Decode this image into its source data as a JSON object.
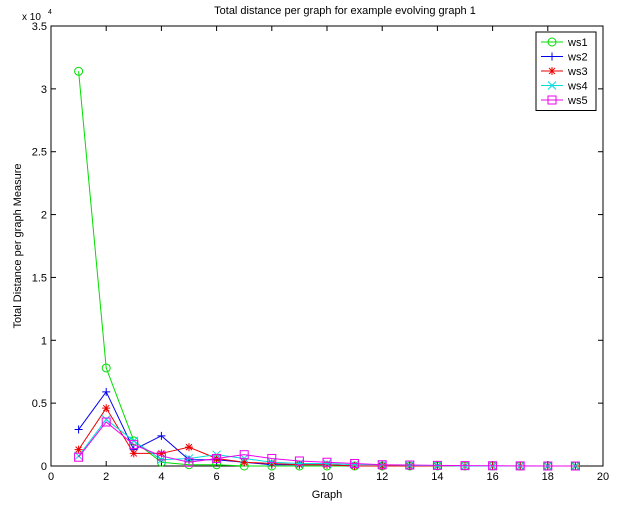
{
  "chart_data": {
    "type": "line",
    "title": "Total distance per graph for example evolving graph 1",
    "xlabel": "Graph",
    "ylabel": "Total Distance per graph Measure",
    "y_multiplier": "x 10",
    "y_multiplier_exp": "4",
    "xlim": [
      0,
      20
    ],
    "ylim": [
      0,
      3.5
    ],
    "xticks": [
      0,
      2,
      4,
      6,
      8,
      10,
      12,
      14,
      16,
      18,
      20
    ],
    "yticks": [
      0,
      0.5,
      1,
      1.5,
      2,
      2.5,
      3,
      3.5
    ],
    "xtick_labels": [
      "0",
      "2",
      "4",
      "6",
      "8",
      "10",
      "12",
      "14",
      "16",
      "18",
      "20"
    ],
    "ytick_labels": [
      "0",
      "0.5",
      "1",
      "1.5",
      "2",
      "2.5",
      "3",
      "3.5"
    ],
    "legend_position": "top-right",
    "grid": false,
    "x": [
      1,
      2,
      3,
      4,
      5,
      6,
      7,
      8,
      9,
      10,
      11,
      12,
      13,
      14,
      15,
      16,
      17,
      18,
      19
    ],
    "series": [
      {
        "name": "ws1",
        "color": "#00dd00",
        "marker": "circle",
        "values": [
          3.14,
          0.78,
          0.2,
          0.03,
          0.01,
          0.01,
          0.0,
          0.0,
          0.0,
          0.0,
          0.0,
          0.0,
          0.0,
          0.0,
          0.0,
          0.0,
          0.0,
          0.0,
          0.0
        ]
      },
      {
        "name": "ws2",
        "color": "#0000ee",
        "marker": "plus",
        "values": [
          0.29,
          0.59,
          0.13,
          0.24,
          0.05,
          0.05,
          0.03,
          0.01,
          0.01,
          0.01,
          0.0,
          0.0,
          0.0,
          0.0,
          0.0,
          0.0,
          0.0,
          0.0,
          0.0
        ]
      },
      {
        "name": "ws3",
        "color": "#ee0000",
        "marker": "star",
        "values": [
          0.13,
          0.46,
          0.1,
          0.1,
          0.15,
          0.06,
          0.03,
          0.02,
          0.01,
          0.01,
          0.0,
          0.0,
          0.0,
          0.0,
          0.0,
          0.0,
          0.0,
          0.0,
          0.0
        ]
      },
      {
        "name": "ws4",
        "color": "#00dddd",
        "marker": "x",
        "values": [
          0.08,
          0.37,
          0.2,
          0.05,
          0.06,
          0.09,
          0.06,
          0.03,
          0.02,
          0.02,
          0.01,
          0.01,
          0.005,
          0.003,
          0.0,
          0.0,
          0.0,
          0.0,
          0.0
        ]
      },
      {
        "name": "ws5",
        "color": "#ee00ee",
        "marker": "square",
        "values": [
          0.07,
          0.35,
          0.17,
          0.08,
          0.03,
          0.06,
          0.09,
          0.06,
          0.04,
          0.03,
          0.02,
          0.01,
          0.008,
          0.005,
          0.003,
          0.002,
          0.001,
          0.0,
          0.0
        ]
      }
    ]
  }
}
